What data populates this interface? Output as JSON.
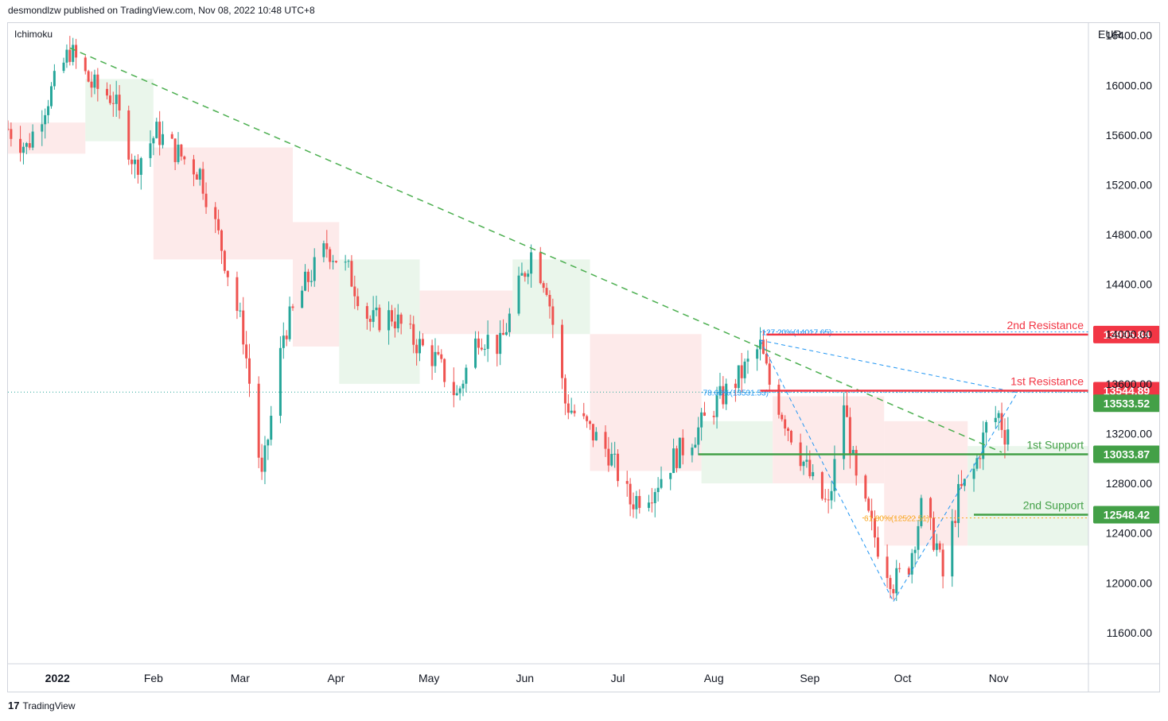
{
  "header": {
    "published_by": "desmondlzw published on TradingView.com, Nov 08, 2022 10:48 UTC+8"
  },
  "indicator": {
    "name": "Ichimoku"
  },
  "footer": {
    "brand": "TradingView",
    "logo_glyph": "17"
  },
  "colors": {
    "up": "#26a69a",
    "down": "#ef5350",
    "resistance": "#f23645",
    "support": "#43a047",
    "trendline": "#4caf50",
    "fib_blue": "#2196f3",
    "fib_orange": "#f9a825",
    "cloud_bull": "#e8f5e9",
    "cloud_bear": "#fde8e8"
  },
  "chart_data": {
    "type": "candlestick",
    "title": "",
    "currency": "EUR",
    "ylim": [
      11350,
      16500
    ],
    "y_ticks": [
      11600,
      12000,
      12400,
      12800,
      13200,
      13600,
      14000,
      14400,
      14800,
      15200,
      15600,
      16000,
      16400
    ],
    "y_tick_labels": [
      "11600.00",
      "12000.00",
      "12400.00",
      "12800.00",
      "13200.00",
      "13600.00",
      "14000.00",
      "14400.00",
      "14800.00",
      "15200.00",
      "15600.00",
      "16000.00",
      "16400.00"
    ],
    "x_labels": [
      {
        "label": "2022",
        "date": "2022-01-01",
        "bold": true
      },
      {
        "label": "Feb",
        "date": "2022-02-01"
      },
      {
        "label": "Mar",
        "date": "2022-03-01"
      },
      {
        "label": "Apr",
        "date": "2022-04-01"
      },
      {
        "label": "May",
        "date": "2022-05-01"
      },
      {
        "label": "Jun",
        "date": "2022-06-01"
      },
      {
        "label": "Jul",
        "date": "2022-07-01"
      },
      {
        "label": "Aug",
        "date": "2022-08-01"
      },
      {
        "label": "Sep",
        "date": "2022-09-01"
      },
      {
        "label": "Oct",
        "date": "2022-10-01"
      },
      {
        "label": "Nov",
        "date": "2022-11-01"
      }
    ],
    "x_range": [
      "2021-12-16",
      "2022-11-30"
    ],
    "price_path": [
      [
        "2021-12-16",
        15650
      ],
      [
        "2021-12-22",
        15500
      ],
      [
        "2021-12-29",
        15900
      ],
      [
        "2022-01-05",
        16280
      ],
      [
        "2022-01-12",
        16000
      ],
      [
        "2022-01-19",
        15900
      ],
      [
        "2022-01-26",
        15350
      ],
      [
        "2022-02-02",
        15620
      ],
      [
        "2022-02-09",
        15450
      ],
      [
        "2022-02-16",
        15300
      ],
      [
        "2022-02-23",
        14700
      ],
      [
        "2022-03-02",
        14000
      ],
      [
        "2022-03-08",
        12830
      ],
      [
        "2022-03-15",
        14000
      ],
      [
        "2022-03-22",
        14400
      ],
      [
        "2022-03-29",
        14700
      ],
      [
        "2022-04-05",
        14500
      ],
      [
        "2022-04-12",
        14100
      ],
      [
        "2022-04-19",
        14150
      ],
      [
        "2022-04-26",
        13950
      ],
      [
        "2022-05-03",
        13800
      ],
      [
        "2022-05-10",
        13500
      ],
      [
        "2022-05-17",
        14000
      ],
      [
        "2022-05-24",
        13900
      ],
      [
        "2022-05-31",
        14450
      ],
      [
        "2022-06-03",
        14650
      ],
      [
        "2022-06-08",
        14400
      ],
      [
        "2022-06-14",
        13450
      ],
      [
        "2022-06-21",
        13250
      ],
      [
        "2022-06-28",
        13050
      ],
      [
        "2022-07-05",
        12650
      ],
      [
        "2022-07-12",
        12750
      ],
      [
        "2022-07-19",
        13000
      ],
      [
        "2022-07-26",
        13200
      ],
      [
        "2022-08-02",
        13450
      ],
      [
        "2022-08-09",
        13650
      ],
      [
        "2022-08-16",
        13900
      ],
      [
        "2022-08-19",
        13600
      ],
      [
        "2022-08-26",
        13200
      ],
      [
        "2022-09-02",
        12800
      ],
      [
        "2022-09-07",
        12600
      ],
      [
        "2022-09-12",
        13450
      ],
      [
        "2022-09-16",
        12800
      ],
      [
        "2022-09-23",
        12300
      ],
      [
        "2022-09-28",
        12000
      ],
      [
        "2022-10-03",
        12150
      ],
      [
        "2022-10-07",
        12600
      ],
      [
        "2022-10-12",
        12300
      ],
      [
        "2022-10-14",
        12050
      ],
      [
        "2022-10-19",
        12700
      ],
      [
        "2022-10-24",
        12900
      ],
      [
        "2022-10-28",
        13250
      ],
      [
        "2022-11-01",
        13350
      ],
      [
        "2022-11-03",
        13200
      ],
      [
        "2022-11-07",
        13420
      ]
    ],
    "ichimoku_cloud": [
      {
        "from": "2021-12-16",
        "to": "2022-01-10",
        "top": 15700,
        "bottom": 15450,
        "trend": "bear"
      },
      {
        "from": "2022-01-10",
        "to": "2022-02-01",
        "top": 16050,
        "bottom": 15550,
        "trend": "bull"
      },
      {
        "from": "2022-02-01",
        "to": "2022-03-18",
        "top": 15500,
        "bottom": 14600,
        "trend": "bear"
      },
      {
        "from": "2022-03-18",
        "to": "2022-04-02",
        "top": 14900,
        "bottom": 13900,
        "trend": "bear"
      },
      {
        "from": "2022-04-02",
        "to": "2022-04-28",
        "top": 14600,
        "bottom": 13600,
        "trend": "bull"
      },
      {
        "from": "2022-04-28",
        "to": "2022-05-28",
        "top": 14350,
        "bottom": 14000,
        "trend": "bear"
      },
      {
        "from": "2022-05-28",
        "to": "2022-06-22",
        "top": 14600,
        "bottom": 14000,
        "trend": "bull"
      },
      {
        "from": "2022-06-22",
        "to": "2022-07-28",
        "top": 14000,
        "bottom": 12900,
        "trend": "bear"
      },
      {
        "from": "2022-07-28",
        "to": "2022-08-20",
        "top": 13300,
        "bottom": 12800,
        "trend": "bull"
      },
      {
        "from": "2022-08-20",
        "to": "2022-09-25",
        "top": 13500,
        "bottom": 12800,
        "trend": "bear"
      },
      {
        "from": "2022-09-25",
        "to": "2022-10-22",
        "top": 13300,
        "bottom": 12300,
        "trend": "bear"
      },
      {
        "from": "2022-10-22",
        "to": "2022-11-30",
        "top": 13100,
        "bottom": 12300,
        "trend": "bull"
      }
    ],
    "trendline": {
      "from": [
        "2022-01-05",
        16300
      ],
      "to": [
        "2022-11-02",
        13050
      ],
      "style": "dashed"
    },
    "fib_zigzag": [
      [
        "2022-08-16",
        13950
      ],
      [
        "2022-09-28",
        11850
      ],
      [
        "2022-11-07",
        13530
      ]
    ],
    "fib_levels": [
      {
        "label": "127.20%(14017.65)",
        "value": 14017.65,
        "from": "2022-08-16",
        "to": "2022-11-30",
        "color": "fib_blue"
      },
      {
        "label": "78.60%(13531.53)",
        "value": 13531.53,
        "from": "2022-07-28",
        "to": "2022-11-30",
        "color": "fib_blue"
      },
      {
        "label": "61.80%(12522.51)",
        "value": 12522.51,
        "from": "2022-09-18",
        "to": "2022-11-30",
        "color": "fib_orange"
      }
    ],
    "levels": [
      {
        "label": "2nd Resistance",
        "value": 13995.84,
        "value_label": "13995.84",
        "from": "2022-08-18",
        "color": "resistance"
      },
      {
        "label": "1st Resistance",
        "value": 13544.89,
        "value_label": "13544.89",
        "from": "2022-08-16",
        "color": "resistance"
      },
      {
        "label": "1st Support",
        "value": 13033.87,
        "value_label": "13033.87",
        "from": "2022-07-27",
        "color": "support"
      },
      {
        "label": "2nd Support",
        "value": 12548.42,
        "value_label": "12548.42",
        "from": "2022-10-24",
        "color": "support"
      }
    ],
    "last_price": {
      "value": 13533.52,
      "label": "13533.52"
    }
  }
}
